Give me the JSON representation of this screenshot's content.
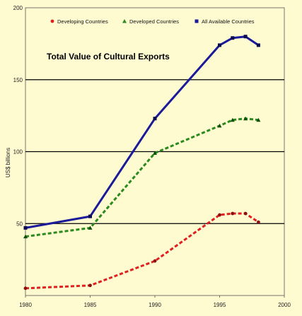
{
  "chart_data": {
    "type": "line",
    "title": "Total Value of Cultural Exports",
    "xlabel": "",
    "ylabel": "US$ billions",
    "xlim": [
      1980,
      2000
    ],
    "ylim": [
      0,
      200
    ],
    "xticks": [
      "1980",
      "1985",
      "1990",
      "1995",
      "2000"
    ],
    "yticks": [
      "0",
      "50",
      "100",
      "150",
      "200"
    ],
    "gridlines_y": [
      50,
      100,
      150
    ],
    "legend_position": "top",
    "series": [
      {
        "name": "Developing Countries",
        "color": "#e02020",
        "marker": "circle",
        "dash": true,
        "x": [
          1980,
          1985,
          1990,
          1995,
          1996,
          1997,
          1998
        ],
        "y": [
          5,
          7,
          24,
          56,
          57,
          57,
          51
        ]
      },
      {
        "name": "Developed Countries",
        "color": "#2a8a1e",
        "marker": "triangle",
        "dash": true,
        "x": [
          1980,
          1985,
          1990,
          1995,
          1996,
          1997,
          1998
        ],
        "y": [
          41,
          47,
          99,
          118,
          122,
          123,
          122
        ]
      },
      {
        "name": "All Available Countries",
        "color": "#1a1a9a",
        "marker": "square",
        "dash": false,
        "x": [
          1980,
          1985,
          1990,
          1995,
          1996,
          1997,
          1998
        ],
        "y": [
          47,
          55,
          123,
          174,
          179,
          180,
          174
        ]
      }
    ]
  }
}
